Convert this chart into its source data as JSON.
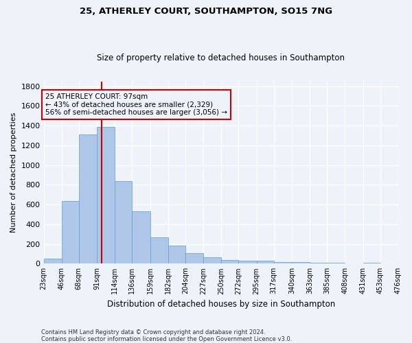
{
  "title": "25, ATHERLEY COURT, SOUTHAMPTON, SO15 7NG",
  "subtitle": "Size of property relative to detached houses in Southampton",
  "xlabel": "Distribution of detached houses by size in Southampton",
  "ylabel": "Number of detached properties",
  "footnote1": "Contains HM Land Registry data © Crown copyright and database right 2024.",
  "footnote2": "Contains public sector information licensed under the Open Government Licence v3.0.",
  "annotation_line1": "25 ATHERLEY COURT: 97sqm",
  "annotation_line2": "← 43% of detached houses are smaller (2,329)",
  "annotation_line3": "56% of semi-detached houses are larger (3,056) →",
  "property_size_sqm": 97,
  "bin_edges": [
    23,
    46,
    68,
    91,
    114,
    136,
    159,
    182,
    204,
    227,
    250,
    272,
    295,
    317,
    340,
    363,
    385,
    408,
    431,
    453,
    476
  ],
  "bar_heights": [
    50,
    635,
    1310,
    1390,
    840,
    530,
    270,
    185,
    105,
    65,
    35,
    30,
    30,
    15,
    15,
    10,
    10,
    5,
    10,
    5
  ],
  "bar_color": "#aec6e8",
  "bar_edge_color": "#5a9fd4",
  "red_line_color": "#cc0000",
  "annotation_box_color": "#cc0000",
  "background_color": "#eef2f9",
  "grid_color": "#ffffff",
  "ylim": [
    0,
    1850
  ],
  "yticks": [
    0,
    200,
    400,
    600,
    800,
    1000,
    1200,
    1400,
    1600,
    1800
  ]
}
